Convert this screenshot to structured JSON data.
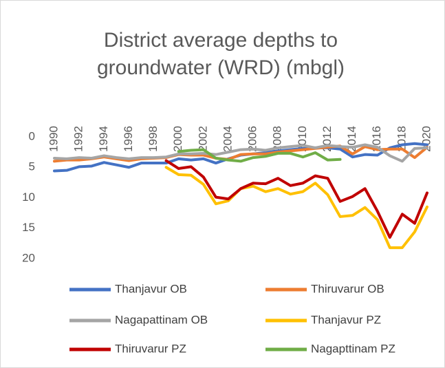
{
  "chart_data": {
    "type": "line",
    "title": "District average depths to groundwater (WRD) (mbgl)",
    "x": [
      1990,
      1991,
      1992,
      1993,
      1994,
      1995,
      1996,
      1997,
      1998,
      1999,
      2000,
      2001,
      2002,
      2003,
      2004,
      2005,
      2006,
      2007,
      2008,
      2009,
      2010,
      2011,
      2012,
      2013,
      2014,
      2015,
      2016,
      2017,
      2018,
      2019,
      2020
    ],
    "xlim": [
      1990,
      2020
    ],
    "xticks": [
      1990,
      1992,
      1994,
      1996,
      1998,
      2000,
      2002,
      2004,
      2006,
      2008,
      2010,
      2012,
      2014,
      2016,
      2018,
      2020
    ],
    "ylim": [
      0,
      20
    ],
    "yticks": [
      0,
      5,
      10,
      15,
      20
    ],
    "y_inverted": true,
    "grid": false,
    "legend": "bottom",
    "series": [
      {
        "name": "Thanjavur OB",
        "color": "#4472c4",
        "values": [
          5.6,
          5.5,
          4.9,
          4.8,
          4.2,
          4.6,
          5.0,
          4.3,
          4.3,
          4.3,
          3.6,
          3.8,
          3.6,
          4.3,
          3.6,
          3.0,
          2.8,
          2.6,
          2.3,
          2.1,
          1.9,
          1.8,
          1.8,
          2.0,
          3.3,
          2.9,
          3.0,
          1.8,
          1.3,
          1.1,
          1.3
        ]
      },
      {
        "name": "Thiruvarur OB",
        "color": "#ed7d31",
        "values": [
          4.0,
          3.8,
          3.8,
          3.6,
          3.3,
          3.6,
          3.9,
          3.6,
          3.5,
          3.4,
          2.9,
          3.0,
          3.0,
          3.5,
          3.7,
          2.9,
          2.8,
          2.8,
          2.5,
          2.3,
          2.1,
          1.9,
          1.7,
          1.5,
          2.8,
          1.6,
          2.1,
          2.0,
          2.0,
          3.4,
          1.7
        ]
      },
      {
        "name": "Nagapattinam OB",
        "color": "#a5a5a5",
        "values": [
          3.5,
          3.6,
          3.4,
          3.5,
          3.1,
          3.4,
          3.6,
          3.4,
          3.4,
          3.3,
          2.8,
          2.8,
          2.7,
          2.9,
          2.5,
          2.1,
          2.0,
          2.2,
          1.8,
          1.6,
          1.4,
          1.8,
          1.4,
          1.6,
          1.7,
          1.3,
          1.7,
          3.1,
          4.0,
          1.9,
          1.8
        ]
      },
      {
        "name": "Thanjavur PZ",
        "color": "#ffc000",
        "values": [
          null,
          null,
          null,
          null,
          null,
          null,
          null,
          null,
          null,
          5.0,
          6.2,
          6.3,
          7.8,
          11.0,
          10.5,
          8.5,
          8.1,
          9.0,
          8.5,
          9.4,
          9.0,
          7.6,
          9.5,
          13.1,
          12.9,
          11.6,
          13.6,
          18.2,
          18.2,
          15.6,
          11.5
        ]
      },
      {
        "name": "Thiruvarur PZ",
        "color": "#c00000",
        "values": [
          null,
          null,
          null,
          null,
          null,
          null,
          null,
          null,
          null,
          3.9,
          5.2,
          4.9,
          6.6,
          9.9,
          10.2,
          8.5,
          7.6,
          7.7,
          6.8,
          8.0,
          7.6,
          6.4,
          6.8,
          10.6,
          9.8,
          8.5,
          12.2,
          16.5,
          12.7,
          14.2,
          9.2
        ]
      },
      {
        "name": "Nagapttinam PZ",
        "color": "#70ad47",
        "values": [
          null,
          null,
          null,
          null,
          null,
          null,
          null,
          null,
          null,
          null,
          2.4,
          2.2,
          2.1,
          3.5,
          3.8,
          4.0,
          3.4,
          3.2,
          2.7,
          2.7,
          3.3,
          2.6,
          3.8,
          3.7,
          null,
          null,
          null,
          null,
          null,
          null,
          null
        ]
      }
    ]
  }
}
